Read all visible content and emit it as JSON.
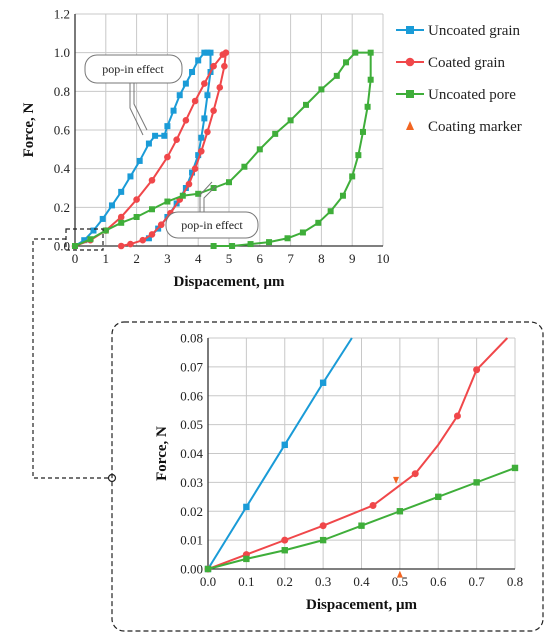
{
  "colors": {
    "uncoated_grain": "#1a9bd7",
    "coated_grain": "#f0474a",
    "uncoated_pore": "#3fae3a",
    "marker": "#f26522",
    "grid": "#c8c8c8"
  },
  "legend": [
    {
      "label": "Uncoated grain",
      "color": "#1a9bd7",
      "marker": "square"
    },
    {
      "label": "Coated grain",
      "color": "#f0474a",
      "marker": "circle"
    },
    {
      "label": "Uncoated pore",
      "color": "#3fae3a",
      "marker": "square"
    },
    {
      "label": "Coating marker",
      "color": "#f26522",
      "marker": "triangle"
    }
  ],
  "annotations": [
    "pop-in effect",
    "pop-in effect"
  ],
  "chart_data": [
    {
      "type": "line",
      "name_hint": "main",
      "xlabel": "Dispacement, μm",
      "ylabel": "Force, N",
      "xlim": [
        0,
        10
      ],
      "ylim": [
        0,
        1.2
      ],
      "x_ticks": [
        "0",
        "1",
        "2",
        "3",
        "4",
        "5",
        "6",
        "7",
        "8",
        "9",
        "10"
      ],
      "y_ticks": [
        "0.0",
        "0.2",
        "0.4",
        "0.6",
        "0.8",
        "1.0",
        "1.2"
      ],
      "grid": true,
      "series": [
        {
          "name": "Uncoated grain",
          "marker": "square",
          "x": [
            0,
            0.3,
            0.6,
            0.9,
            1.2,
            1.5,
            1.8,
            2.1,
            2.4,
            2.6,
            2.9,
            3.0,
            3.2,
            3.4,
            3.6,
            3.8,
            4.0,
            4.2,
            4.3,
            4.4,
            4.4,
            4.3,
            4.2,
            4.1,
            4.0,
            3.8,
            3.6,
            3.3,
            3.0,
            2.7,
            2.4
          ],
          "y": [
            0,
            0.03,
            0.08,
            0.14,
            0.21,
            0.28,
            0.36,
            0.44,
            0.53,
            0.57,
            0.57,
            0.62,
            0.7,
            0.78,
            0.84,
            0.9,
            0.96,
            1.0,
            1.0,
            1.0,
            0.9,
            0.78,
            0.66,
            0.56,
            0.47,
            0.38,
            0.3,
            0.22,
            0.15,
            0.09,
            0.04
          ]
        },
        {
          "name": "Coated grain",
          "marker": "circle",
          "x": [
            0,
            0.5,
            1.0,
            1.5,
            2.0,
            2.5,
            3.0,
            3.3,
            3.6,
            3.9,
            4.2,
            4.5,
            4.8,
            4.9,
            4.85,
            4.7,
            4.5,
            4.3,
            4.1,
            3.9,
            3.7,
            3.4,
            3.1,
            2.8,
            2.5,
            2.2,
            1.8,
            1.5
          ],
          "y": [
            0,
            0.03,
            0.08,
            0.15,
            0.24,
            0.34,
            0.46,
            0.55,
            0.65,
            0.75,
            0.84,
            0.93,
            0.99,
            1.0,
            0.93,
            0.82,
            0.7,
            0.59,
            0.49,
            0.4,
            0.32,
            0.24,
            0.17,
            0.11,
            0.06,
            0.03,
            0.01,
            0
          ]
        },
        {
          "name": "Uncoated pore",
          "marker": "square",
          "x": [
            0,
            0.5,
            1.0,
            1.5,
            2.0,
            2.5,
            3.0,
            3.5,
            4.0,
            4.5,
            5.0,
            5.5,
            6.0,
            6.5,
            7.0,
            7.5,
            8.0,
            8.5,
            8.8,
            9.1,
            9.6,
            9.6,
            9.5,
            9.35,
            9.2,
            9.0,
            8.7,
            8.3,
            7.9,
            7.4,
            6.9,
            6.3,
            5.7,
            5.1,
            4.5
          ],
          "y": [
            0,
            0.035,
            0.08,
            0.12,
            0.15,
            0.19,
            0.23,
            0.26,
            0.27,
            0.3,
            0.33,
            0.41,
            0.5,
            0.58,
            0.65,
            0.73,
            0.81,
            0.88,
            0.95,
            1.0,
            1.0,
            0.86,
            0.72,
            0.59,
            0.47,
            0.36,
            0.26,
            0.18,
            0.12,
            0.07,
            0.04,
            0.02,
            0.01,
            0,
            0
          ]
        }
      ]
    },
    {
      "type": "line",
      "name_hint": "inset",
      "xlabel": "Dispacement, μm",
      "ylabel": "Force, N",
      "xlim": [
        0,
        0.8
      ],
      "ylim": [
        0,
        0.08
      ],
      "x_ticks": [
        "0.0",
        "0.1",
        "0.2",
        "0.3",
        "0.4",
        "0.5",
        "0.6",
        "0.7",
        "0.8"
      ],
      "y_ticks": [
        "0.00",
        "0.01",
        "0.02",
        "0.03",
        "0.04",
        "0.05",
        "0.06",
        "0.07",
        "0.08"
      ],
      "grid": true,
      "series": [
        {
          "name": "Uncoated grain",
          "marker": "square",
          "x": [
            0,
            0.1,
            0.2,
            0.3,
            0.375
          ],
          "y": [
            0,
            0.0215,
            0.043,
            0.0645,
            0.08
          ],
          "marker_count": 4
        },
        {
          "name": "Coated grain",
          "marker": "circle",
          "x": [
            0,
            0.1,
            0.2,
            0.3,
            0.43,
            0.49,
            0.54,
            0.6,
            0.65,
            0.7,
            0.78
          ],
          "y": [
            0,
            0.005,
            0.01,
            0.015,
            0.022,
            0.028,
            0.033,
            0.043,
            0.053,
            0.069,
            0.08
          ],
          "marker_idx": [
            0,
            1,
            2,
            3,
            4,
            6,
            8,
            9
          ]
        },
        {
          "name": "Uncoated pore",
          "marker": "square",
          "x": [
            0,
            0.1,
            0.2,
            0.3,
            0.4,
            0.5,
            0.6,
            0.7,
            0.8
          ],
          "y": [
            0,
            0.0035,
            0.0065,
            0.01,
            0.015,
            0.02,
            0.025,
            0.03,
            0.035
          ]
        }
      ],
      "markers": [
        {
          "x": 0.49,
          "y": 0.0305,
          "dir": "down"
        },
        {
          "x": 0.5,
          "y": -0.0016,
          "dir": "up"
        }
      ]
    }
  ]
}
